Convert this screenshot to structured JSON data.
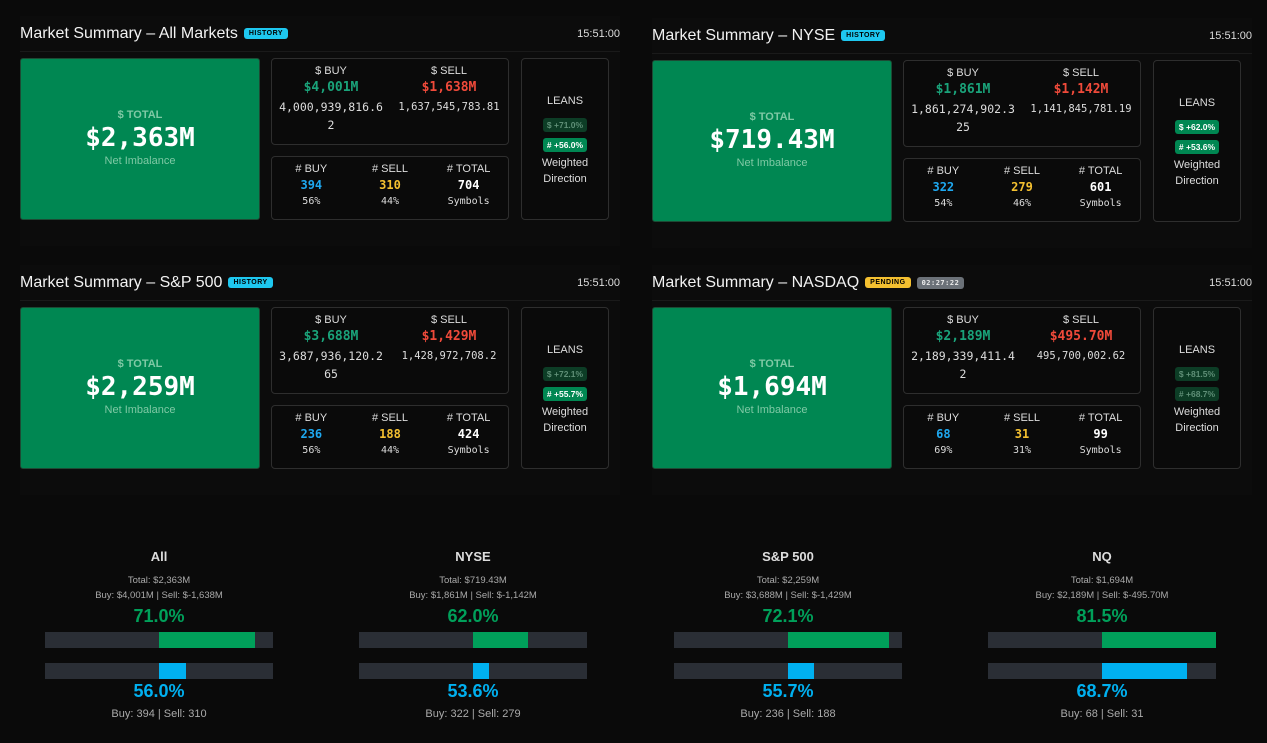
{
  "panels": [
    {
      "title": "Market Summary – All Markets",
      "badge": "HISTORY",
      "badge_type": "hist",
      "time": "15:51:00",
      "total_label": "$ TOTAL",
      "total": "$2,363M",
      "total_sub": "Net Imbalance",
      "buy_label": "$ BUY",
      "buy": "$4,001M",
      "buy_raw": "4,000,939,816.62",
      "sell_label": "$ SELL",
      "sell": "$1,638M",
      "sell_raw": "1,637,545,783.81",
      "nbuy_label": "# BUY",
      "nbuy": "394",
      "nbuy_pct": "56%",
      "nsell_label": "# SELL",
      "nsell": "310",
      "nsell_pct": "44%",
      "ntotal_label": "# TOTAL",
      "ntotal": "704",
      "ntotal_sub": "Symbols",
      "leans": "LEANS",
      "lean_dollar": "$ +71.0%",
      "lean_count": "# +56.0%",
      "lean_dollar_on": false,
      "lean_count_on": true,
      "weighted": "Weighted Direction"
    },
    {
      "title": "Market Summary – NYSE",
      "badge": "HISTORY",
      "badge_type": "hist",
      "time": "15:51:00",
      "total_label": "$ TOTAL",
      "total": "$719.43M",
      "total_sub": "Net Imbalance",
      "buy_label": "$ BUY",
      "buy": "$1,861M",
      "buy_raw": "1,861,274,902.325",
      "sell_label": "$ SELL",
      "sell": "$1,142M",
      "sell_raw": "1,141,845,781.19",
      "nbuy_label": "# BUY",
      "nbuy": "322",
      "nbuy_pct": "54%",
      "nsell_label": "# SELL",
      "nsell": "279",
      "nsell_pct": "46%",
      "ntotal_label": "# TOTAL",
      "ntotal": "601",
      "ntotal_sub": "Symbols",
      "leans": "LEANS",
      "lean_dollar": "$ +62.0%",
      "lean_count": "# +53.6%",
      "lean_dollar_on": true,
      "lean_count_on": true,
      "weighted": "Weighted Direction"
    },
    {
      "title": "Market Summary – S&P 500",
      "badge": "HISTORY",
      "badge_type": "hist",
      "time": "15:51:00",
      "total_label": "$ TOTAL",
      "total": "$2,259M",
      "total_sub": "Net Imbalance",
      "buy_label": "$ BUY",
      "buy": "$3,688M",
      "buy_raw": "3,687,936,120.265",
      "sell_label": "$ SELL",
      "sell": "$1,429M",
      "sell_raw": "1,428,972,708.2",
      "nbuy_label": "# BUY",
      "nbuy": "236",
      "nbuy_pct": "56%",
      "nsell_label": "# SELL",
      "nsell": "188",
      "nsell_pct": "44%",
      "ntotal_label": "# TOTAL",
      "ntotal": "424",
      "ntotal_sub": "Symbols",
      "leans": "LEANS",
      "lean_dollar": "$ +72.1%",
      "lean_count": "# +55.7%",
      "lean_dollar_on": false,
      "lean_count_on": true,
      "weighted": "Weighted Direction"
    },
    {
      "title": "Market Summary – NASDAQ",
      "badge": "PENDING",
      "badge_type": "pend",
      "timer": "02:27:22",
      "time": "15:51:00",
      "total_label": "$ TOTAL",
      "total": "$1,694M",
      "total_sub": "Net Imbalance",
      "buy_label": "$ BUY",
      "buy": "$2,189M",
      "buy_raw": "2,189,339,411.42",
      "sell_label": "$ SELL",
      "sell": "$495.70M",
      "sell_raw": "495,700,002.62",
      "nbuy_label": "# BUY",
      "nbuy": "68",
      "nbuy_pct": "69%",
      "nsell_label": "# SELL",
      "nsell": "31",
      "nsell_pct": "31%",
      "ntotal_label": "# TOTAL",
      "ntotal": "99",
      "ntotal_sub": "Symbols",
      "leans": "LEANS",
      "lean_dollar": "$ +81.5%",
      "lean_count": "# +68.7%",
      "lean_dollar_on": false,
      "lean_count_on": false,
      "weighted": "Weighted Direction"
    }
  ],
  "gauges": [
    {
      "name": "All",
      "total": "Total: $2,363M",
      "buysell": "Buy: $4,001M | Sell: $-1,638M",
      "dollar_pct_label": "71.0%",
      "dollar_pct": 71.0,
      "count_pct_label": "56.0%",
      "count_pct": 56.0,
      "counts": "Buy: 394 | Sell: 310"
    },
    {
      "name": "NYSE",
      "total": "Total: $719.43M",
      "buysell": "Buy: $1,861M | Sell: $-1,142M",
      "dollar_pct_label": "62.0%",
      "dollar_pct": 62.0,
      "count_pct_label": "53.6%",
      "count_pct": 53.6,
      "counts": "Buy: 322 | Sell: 279"
    },
    {
      "name": "S&P 500",
      "total": "Total: $2,259M",
      "buysell": "Buy: $3,688M | Sell: $-1,429M",
      "dollar_pct_label": "72.1%",
      "dollar_pct": 72.1,
      "count_pct_label": "55.7%",
      "count_pct": 55.7,
      "counts": "Buy: 236 | Sell: 188"
    },
    {
      "name": "NQ",
      "total": "Total: $1,694M",
      "buysell": "Buy: $2,189M | Sell: $-495.70M",
      "dollar_pct_label": "81.5%",
      "dollar_pct": 81.5,
      "count_pct_label": "68.7%",
      "count_pct": 68.7,
      "counts": "Buy: 68 | Sell: 31"
    }
  ],
  "colors": {
    "dollar_bar": "#00a05a",
    "count_bar": "#00b0f0",
    "total_bg": "#008752"
  }
}
